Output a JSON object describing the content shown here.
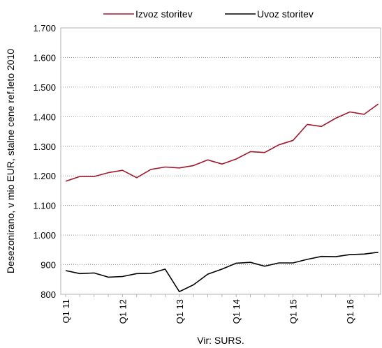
{
  "chart_data": {
    "type": "line",
    "ylabel": "Desezonirano, v mio EUR, stalne cene ref.leto 2010",
    "source_note": "Vir: SURS.",
    "ylim": [
      800,
      1700
    ],
    "y_ticks": [
      "800",
      "900",
      "1.000",
      "1.100",
      "1.200",
      "1.300",
      "1.400",
      "1.500",
      "1.600",
      "1.700"
    ],
    "y_tick_values": [
      800,
      900,
      1000,
      1100,
      1200,
      1300,
      1400,
      1500,
      1600,
      1700
    ],
    "x_tick_labels": [
      "Q1 11",
      "Q1 12",
      "Q1 13",
      "Q1 14",
      "Q1 15",
      "Q1 16"
    ],
    "x_tick_positions": [
      0,
      4,
      8,
      12,
      16,
      20
    ],
    "periods": 23,
    "grid": "horizontal dotted",
    "legend_placement": "top",
    "series": [
      {
        "name": "Izvoz storitev",
        "color": "#a0182e",
        "values": [
          1182,
          1198,
          1198,
          1211,
          1219,
          1194,
          1222,
          1230,
          1227,
          1235,
          1254,
          1240,
          1257,
          1282,
          1279,
          1305,
          1320,
          1374,
          1367,
          1395,
          1416,
          1408,
          1443
        ]
      },
      {
        "name": "Uvoz storitev",
        "color": "#000000",
        "values": [
          880,
          870,
          872,
          858,
          860,
          870,
          871,
          885,
          809,
          832,
          868,
          885,
          905,
          908,
          895,
          906,
          906,
          918,
          928,
          927,
          934,
          936,
          942
        ]
      }
    ]
  }
}
